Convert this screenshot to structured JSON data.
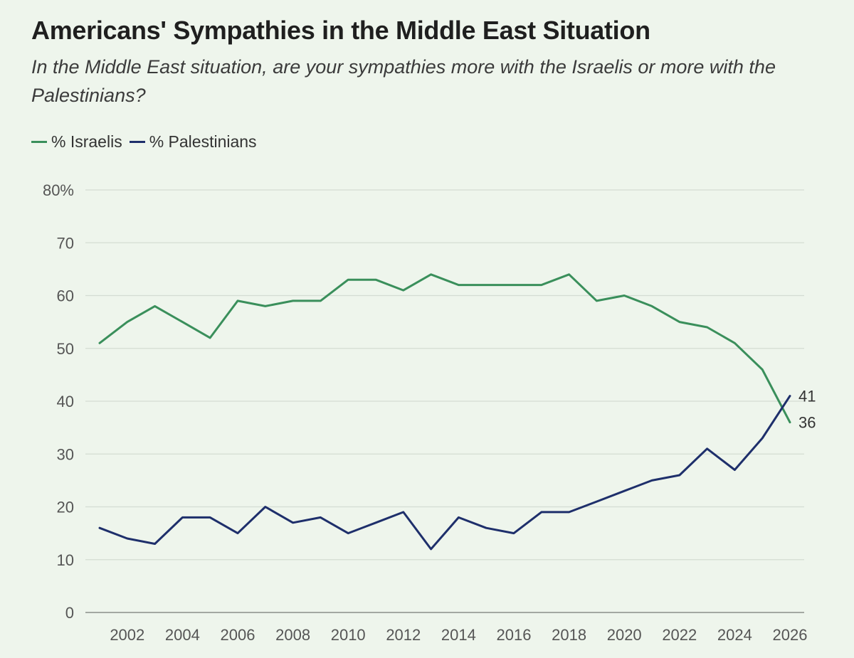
{
  "chart_data": {
    "type": "line",
    "title": "Americans' Sympathies in the Middle East Situation",
    "subtitle": "In the Middle East situation, are your sympathies more with the Israelis or more with the Palestinians?",
    "x": [
      2001,
      2002,
      2003,
      2004,
      2005,
      2006,
      2007,
      2008,
      2009,
      2010,
      2011,
      2012,
      2013,
      2014,
      2015,
      2016,
      2017,
      2018,
      2019,
      2020,
      2021,
      2022,
      2023,
      2024,
      2025,
      2026
    ],
    "series": [
      {
        "name": "% Israelis",
        "color": "#3a8f5b",
        "values": [
          51,
          55,
          58,
          55,
          52,
          59,
          58,
          59,
          59,
          63,
          63,
          61,
          64,
          62,
          62,
          62,
          62,
          64,
          59,
          60,
          58,
          55,
          54,
          51,
          46,
          36
        ],
        "end_label": "36"
      },
      {
        "name": "% Palestinians",
        "color": "#1e2f6b",
        "values": [
          16,
          14,
          13,
          18,
          18,
          15,
          20,
          17,
          18,
          15,
          17,
          19,
          12,
          18,
          16,
          15,
          19,
          19,
          21,
          23,
          25,
          26,
          31,
          27,
          33,
          41
        ],
        "end_label": "41"
      }
    ],
    "x_ticks": [
      2002,
      2004,
      2006,
      2008,
      2010,
      2012,
      2014,
      2016,
      2018,
      2020,
      2022,
      2024,
      2026
    ],
    "x_tick_labels": [
      "2002",
      "2004",
      "2006",
      "2008",
      "2010",
      "2012",
      "2014",
      "2016",
      "2018",
      "2020",
      "2022",
      "2024",
      "2026"
    ],
    "y_ticks": [
      0,
      10,
      20,
      30,
      40,
      50,
      60,
      70,
      80
    ],
    "y_tick_labels": [
      "0",
      "10",
      "20",
      "30",
      "40",
      "50",
      "60",
      "70",
      "80%"
    ],
    "xlim": [
      2001,
      2026
    ],
    "ylim": [
      0,
      80
    ],
    "grid": true,
    "legend_position": "top-left"
  }
}
